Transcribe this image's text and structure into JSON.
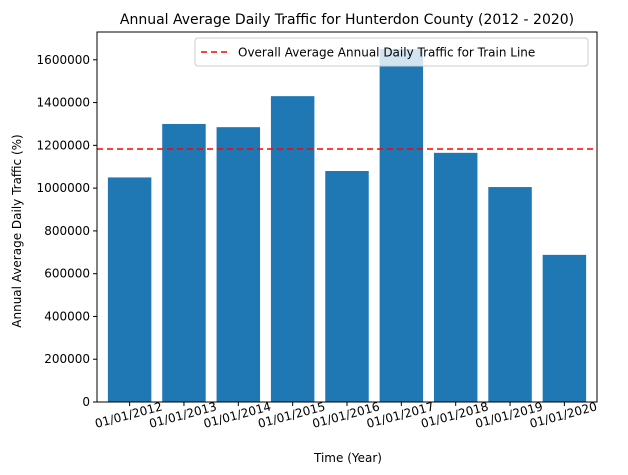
{
  "chart_data": {
    "type": "bar",
    "title": "Annual Average Daily Traffic for Hunterdon County (2012 - 2020)",
    "xlabel": "Time (Year)",
    "ylabel": "Annual Average Daily Traffic (%)",
    "categories": [
      "01/01/2012",
      "01/01/2013",
      "01/01/2014",
      "01/01/2015",
      "01/01/2016",
      "01/01/2017",
      "01/01/2018",
      "01/01/2019",
      "01/01/2020"
    ],
    "values": [
      1050000,
      1300000,
      1285000,
      1430000,
      1080000,
      1650000,
      1165000,
      1005000,
      688000
    ],
    "ylim": [
      0,
      1730000
    ],
    "yticks": [
      0,
      200000,
      400000,
      600000,
      800000,
      1000000,
      1200000,
      1400000,
      1600000
    ],
    "ytick_labels": [
      "0",
      "200000",
      "400000",
      "600000",
      "800000",
      "1000000",
      "1200000",
      "1400000",
      "1600000"
    ],
    "reference_line": {
      "value": 1183000,
      "label": "Overall Average Annual Daily Traffic for Train Line",
      "color": "#ff0000",
      "style": "dashed"
    },
    "bar_color": "#1f77b4",
    "grid": false,
    "legend_position": "top-right"
  }
}
